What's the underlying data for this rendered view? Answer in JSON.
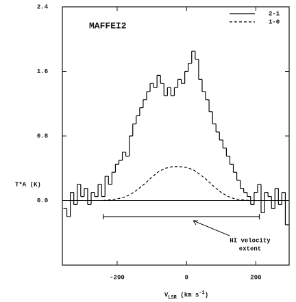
{
  "chart_data": {
    "type": "step",
    "title": "MAFFEI2",
    "y_label": "T*A (K)",
    "x_label": {
      "main": "V",
      "sub": "LSR",
      "unit": " (km s",
      "sup": "-1",
      "end": ")"
    },
    "xlim": [
      -358,
      296
    ],
    "ylim": [
      -0.8,
      2.4
    ],
    "xticks": [
      -200,
      0,
      200
    ],
    "yticks": [
      {
        "value": 0,
        "label": "0.0"
      },
      {
        "value": 0.8,
        "label": "0.8"
      },
      {
        "value": 1.6,
        "label": "1.6"
      },
      {
        "value": 2.4,
        "label": "2.4"
      }
    ],
    "series": [
      {
        "name": "2-1",
        "color": "#000000",
        "style": "step",
        "x": [
          -350,
          -340,
          -330,
          -320,
          -310,
          -300,
          -290,
          -280,
          -270,
          -260,
          -250,
          -240,
          -230,
          -220,
          -210,
          -200,
          -190,
          -180,
          -170,
          -160,
          -150,
          -140,
          -130,
          -120,
          -110,
          -100,
          -90,
          -80,
          -70,
          -60,
          -50,
          -40,
          -30,
          -20,
          -10,
          0,
          10,
          20,
          30,
          40,
          50,
          60,
          70,
          80,
          90,
          100,
          110,
          120,
          130,
          140,
          150,
          160,
          170,
          180,
          190,
          200,
          210,
          220,
          230,
          240,
          250,
          260,
          270,
          280,
          290
        ],
        "values": [
          -0.1,
          -0.2,
          0.1,
          -0.05,
          0.2,
          0.05,
          0.15,
          -0.05,
          0.1,
          0.05,
          0.2,
          0.05,
          0.3,
          0.2,
          0.35,
          0.45,
          0.5,
          0.6,
          0.55,
          0.8,
          0.95,
          1.05,
          1.15,
          1.25,
          1.35,
          1.45,
          1.4,
          1.55,
          1.45,
          1.3,
          1.4,
          1.3,
          1.4,
          1.5,
          1.45,
          1.6,
          1.7,
          1.85,
          1.75,
          1.5,
          1.35,
          1.25,
          1.1,
          0.95,
          0.85,
          0.75,
          0.65,
          0.55,
          0.45,
          0.35,
          0.25,
          0.15,
          0.1,
          0.05,
          -0.05,
          0.1,
          0.2,
          -0.15,
          0.1,
          0.05,
          -0.1,
          0.15,
          -0.05,
          0.1,
          -0.3
        ]
      },
      {
        "name": "1-0",
        "color": "#000000",
        "style": "dashed",
        "x": [
          -240,
          -220,
          -200,
          -180,
          -160,
          -140,
          -120,
          -100,
          -80,
          -60,
          -40,
          -20,
          0,
          20,
          40,
          60,
          80,
          100,
          120,
          140,
          160,
          180
        ],
        "values": [
          0,
          0.01,
          0.02,
          0.04,
          0.08,
          0.14,
          0.21,
          0.29,
          0.36,
          0.4,
          0.42,
          0.42,
          0.41,
          0.38,
          0.32,
          0.25,
          0.17,
          0.1,
          0.05,
          0.02,
          0.01,
          0
        ]
      }
    ],
    "annotation": {
      "lines": [
        "HI velocity",
        "extent"
      ],
      "range": [
        -240,
        210
      ],
      "y": -0.2
    }
  }
}
